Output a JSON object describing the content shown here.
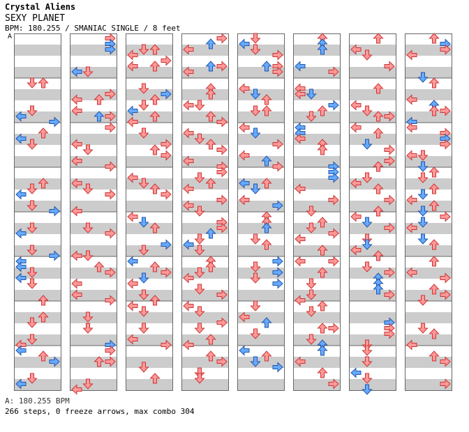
{
  "song": {
    "artist": "Crystal Aliens",
    "title": "SEXY PLANET",
    "info": "BPM: 180.255 / SMANIAC SINGLE / 8 feet"
  },
  "bpm_marker": "A",
  "footer": {
    "bpm": "A: 180.255 BPM",
    "stats": "266 steps, 0 freeze arrows, max combo 304"
  },
  "colors": {
    "quarter_note": "#ff9999",
    "eighth_note": "#66aaff",
    "stripe": "#cccccc",
    "border": "#666666"
  },
  "columns": [
    {
      "label": "col1"
    },
    {
      "label": "col2"
    },
    {
      "label": "col3"
    },
    {
      "label": "col4"
    },
    {
      "label": "col5"
    },
    {
      "label": "col6"
    },
    {
      "label": "col7"
    },
    {
      "label": "col8"
    }
  ],
  "notes": [
    [
      [
        8,
        1,
        "r"
      ],
      [
        8,
        2,
        "r"
      ],
      [
        14,
        0,
        "b"
      ],
      [
        13,
        1,
        "r"
      ],
      [
        15,
        3,
        "b"
      ],
      [
        18,
        0,
        "b"
      ],
      [
        19,
        1,
        "r"
      ],
      [
        17,
        2,
        "r"
      ],
      [
        27,
        1,
        "r"
      ],
      [
        26,
        2,
        "r"
      ],
      [
        28,
        0,
        "b"
      ],
      [
        31,
        3,
        "b"
      ],
      [
        30,
        1,
        "r"
      ],
      [
        34,
        1,
        "r"
      ],
      [
        35,
        0,
        "b"
      ],
      [
        38,
        1,
        "r"
      ],
      [
        39,
        3,
        "b"
      ],
      [
        40,
        0,
        "b"
      ],
      [
        41,
        0,
        "b"
      ],
      [
        42,
        1,
        "r"
      ],
      [
        43,
        0,
        "b"
      ],
      [
        44,
        1,
        "r"
      ],
      [
        47,
        2,
        "r"
      ],
      [
        51,
        1,
        "r"
      ],
      [
        50,
        2,
        "r"
      ],
      [
        54,
        1,
        "r"
      ],
      [
        55,
        0,
        "r"
      ],
      [
        56,
        0,
        "b"
      ],
      [
        57,
        2,
        "r"
      ],
      [
        58,
        3,
        "b"
      ],
      [
        61,
        1,
        "r"
      ],
      [
        62,
        0,
        "b"
      ]
    ],
    [
      [
        0,
        3,
        "r"
      ],
      [
        1,
        3,
        "r"
      ],
      [
        1,
        3,
        "b"
      ],
      [
        2,
        3,
        "b"
      ],
      [
        6,
        0,
        "b"
      ],
      [
        6,
        1,
        "r"
      ],
      [
        10,
        3,
        "r"
      ],
      [
        11,
        0,
        "r"
      ],
      [
        11,
        2,
        "r"
      ],
      [
        13,
        0,
        "r"
      ],
      [
        14,
        2,
        "b"
      ],
      [
        14,
        3,
        "r"
      ],
      [
        16,
        3,
        "r"
      ],
      [
        19,
        0,
        "r"
      ],
      [
        20,
        1,
        "r"
      ],
      [
        22,
        0,
        "r"
      ],
      [
        23,
        3,
        "r"
      ],
      [
        26,
        0,
        "r"
      ],
      [
        27,
        1,
        "r"
      ],
      [
        28,
        3,
        "r"
      ],
      [
        31,
        0,
        "r"
      ],
      [
        34,
        1,
        "r"
      ],
      [
        35,
        3,
        "r"
      ],
      [
        39,
        1,
        "r"
      ],
      [
        39,
        0,
        "r"
      ],
      [
        41,
        2,
        "r"
      ],
      [
        42,
        3,
        "r"
      ],
      [
        44,
        0,
        "r"
      ],
      [
        46,
        0,
        "r"
      ],
      [
        47,
        3,
        "r"
      ],
      [
        50,
        1,
        "r"
      ],
      [
        52,
        1,
        "r"
      ],
      [
        55,
        3,
        "b"
      ],
      [
        56,
        3,
        "r"
      ],
      [
        58,
        2,
        "r"
      ],
      [
        58,
        3,
        "r"
      ],
      [
        62,
        1,
        "r"
      ],
      [
        63,
        0,
        "r"
      ]
    ],
    [
      [
        2,
        1,
        "r"
      ],
      [
        2,
        2,
        "r"
      ],
      [
        3,
        0,
        "r"
      ],
      [
        4,
        3,
        "r"
      ],
      [
        5,
        0,
        "r"
      ],
      [
        5,
        2,
        "r"
      ],
      [
        9,
        1,
        "r"
      ],
      [
        10,
        3,
        "b"
      ],
      [
        11,
        2,
        "r"
      ],
      [
        12,
        1,
        "r"
      ],
      [
        13,
        0,
        "b"
      ],
      [
        14,
        2,
        "r"
      ],
      [
        15,
        0,
        "r"
      ],
      [
        17,
        1,
        "r"
      ],
      [
        19,
        3,
        "r"
      ],
      [
        20,
        2,
        "r"
      ],
      [
        21,
        3,
        "r"
      ],
      [
        25,
        0,
        "r"
      ],
      [
        26,
        1,
        "r"
      ],
      [
        27,
        2,
        "r"
      ],
      [
        28,
        3,
        "r"
      ],
      [
        32,
        0,
        "r"
      ],
      [
        33,
        1,
        "b"
      ],
      [
        34,
        2,
        "r"
      ],
      [
        37,
        3,
        "b"
      ],
      [
        38,
        1,
        "r"
      ],
      [
        40,
        0,
        "b"
      ],
      [
        41,
        2,
        "r"
      ],
      [
        42,
        3,
        "r"
      ],
      [
        43,
        1,
        "b"
      ],
      [
        44,
        0,
        "r"
      ],
      [
        46,
        1,
        "r"
      ],
      [
        47,
        2,
        "r"
      ],
      [
        48,
        0,
        "r"
      ],
      [
        49,
        1,
        "r"
      ],
      [
        52,
        1,
        "r"
      ],
      [
        54,
        0,
        "r"
      ],
      [
        55,
        3,
        "r"
      ],
      [
        59,
        1,
        "r"
      ],
      [
        61,
        2,
        "r"
      ]
    ],
    [
      [
        0,
        3,
        "r"
      ],
      [
        1,
        2,
        "b"
      ],
      [
        2,
        0,
        "r"
      ],
      [
        5,
        2,
        "b"
      ],
      [
        5,
        3,
        "r"
      ],
      [
        6,
        0,
        "r"
      ],
      [
        9,
        2,
        "r"
      ],
      [
        10,
        2,
        "r"
      ],
      [
        12,
        0,
        "r"
      ],
      [
        12,
        1,
        "r"
      ],
      [
        14,
        2,
        "r"
      ],
      [
        15,
        3,
        "r"
      ],
      [
        17,
        0,
        "r"
      ],
      [
        18,
        1,
        "r"
      ],
      [
        19,
        2,
        "r"
      ],
      [
        20,
        3,
        "r"
      ],
      [
        22,
        0,
        "r"
      ],
      [
        23,
        3,
        "r"
      ],
      [
        24,
        3,
        "r"
      ],
      [
        25,
        1,
        "r"
      ],
      [
        26,
        2,
        "r"
      ],
      [
        27,
        0,
        "r"
      ],
      [
        29,
        3,
        "r"
      ],
      [
        30,
        0,
        "r"
      ],
      [
        31,
        1,
        "r"
      ],
      [
        33,
        3,
        "r"
      ],
      [
        34,
        3,
        "r"
      ],
      [
        35,
        2,
        "b"
      ],
      [
        36,
        1,
        "r"
      ],
      [
        37,
        0,
        "b"
      ],
      [
        38,
        1,
        "r"
      ],
      [
        40,
        2,
        "r"
      ],
      [
        41,
        2,
        "r"
      ],
      [
        42,
        1,
        "r"
      ],
      [
        43,
        0,
        "r"
      ],
      [
        45,
        1,
        "r"
      ],
      [
        46,
        3,
        "r"
      ],
      [
        48,
        0,
        "r"
      ],
      [
        49,
        1,
        "r"
      ],
      [
        51,
        3,
        "r"
      ],
      [
        52,
        1,
        "r"
      ],
      [
        54,
        2,
        "r"
      ],
      [
        55,
        0,
        "r"
      ],
      [
        57,
        2,
        "r"
      ],
      [
        58,
        3,
        "r"
      ],
      [
        60,
        1,
        "r"
      ],
      [
        61,
        1,
        "r"
      ]
    ],
    [
      [
        0,
        1,
        "r"
      ],
      [
        1,
        0,
        "b"
      ],
      [
        2,
        1,
        "r"
      ],
      [
        3,
        3,
        "r"
      ],
      [
        5,
        2,
        "b"
      ],
      [
        5,
        3,
        "r"
      ],
      [
        6,
        3,
        "r"
      ],
      [
        9,
        0,
        "r"
      ],
      [
        10,
        1,
        "b"
      ],
      [
        11,
        2,
        "r"
      ],
      [
        13,
        1,
        "r"
      ],
      [
        13,
        2,
        "r"
      ],
      [
        16,
        0,
        "r"
      ],
      [
        17,
        1,
        "b"
      ],
      [
        19,
        3,
        "r"
      ],
      [
        21,
        0,
        "r"
      ],
      [
        22,
        2,
        "b"
      ],
      [
        23,
        3,
        "r"
      ],
      [
        26,
        0,
        "b"
      ],
      [
        27,
        1,
        "b"
      ],
      [
        26,
        2,
        "r"
      ],
      [
        29,
        0,
        "r"
      ],
      [
        30,
        3,
        "b"
      ],
      [
        32,
        2,
        "r"
      ],
      [
        33,
        2,
        "r"
      ],
      [
        34,
        2,
        "b"
      ],
      [
        36,
        1,
        "r"
      ],
      [
        37,
        2,
        "r"
      ],
      [
        40,
        3,
        "b"
      ],
      [
        41,
        1,
        "r"
      ],
      [
        42,
        3,
        "b"
      ],
      [
        43,
        1,
        "r"
      ],
      [
        44,
        3,
        "b"
      ],
      [
        48,
        1,
        "r"
      ],
      [
        50,
        0,
        "r"
      ],
      [
        51,
        2,
        "b"
      ],
      [
        53,
        1,
        "r"
      ],
      [
        56,
        0,
        "b"
      ],
      [
        57,
        2,
        "r"
      ],
      [
        58,
        1,
        "b"
      ],
      [
        59,
        3,
        "b"
      ]
    ],
    [
      [
        0,
        2,
        "r"
      ],
      [
        1,
        2,
        "b"
      ],
      [
        2,
        2,
        "b"
      ],
      [
        5,
        0,
        "b"
      ],
      [
        6,
        3,
        "r"
      ],
      [
        9,
        0,
        "r"
      ],
      [
        10,
        0,
        "r"
      ],
      [
        10,
        1,
        "b"
      ],
      [
        12,
        3,
        "b"
      ],
      [
        13,
        2,
        "r"
      ],
      [
        14,
        1,
        "r"
      ],
      [
        16,
        0,
        "b"
      ],
      [
        17,
        0,
        "b"
      ],
      [
        18,
        0,
        "r"
      ],
      [
        19,
        2,
        "r"
      ],
      [
        20,
        2,
        "r"
      ],
      [
        23,
        3,
        "b"
      ],
      [
        24,
        3,
        "b"
      ],
      [
        25,
        3,
        "b"
      ],
      [
        27,
        0,
        "r"
      ],
      [
        29,
        3,
        "r"
      ],
      [
        31,
        1,
        "r"
      ],
      [
        33,
        2,
        "r"
      ],
      [
        34,
        1,
        "r"
      ],
      [
        35,
        3,
        "r"
      ],
      [
        36,
        0,
        "r"
      ],
      [
        38,
        2,
        "r"
      ],
      [
        40,
        0,
        "r"
      ],
      [
        40,
        3,
        "r"
      ],
      [
        42,
        2,
        "r"
      ],
      [
        44,
        1,
        "r"
      ],
      [
        46,
        1,
        "r"
      ],
      [
        47,
        0,
        "r"
      ],
      [
        48,
        2,
        "r"
      ],
      [
        49,
        1,
        "r"
      ],
      [
        52,
        2,
        "r"
      ],
      [
        52,
        3,
        "r"
      ],
      [
        54,
        1,
        "r"
      ],
      [
        55,
        2,
        "b"
      ],
      [
        56,
        2,
        "b"
      ],
      [
        58,
        0,
        "r"
      ],
      [
        60,
        2,
        "r"
      ],
      [
        62,
        3,
        "r"
      ]
    ],
    [
      [
        0,
        2,
        "r"
      ],
      [
        2,
        0,
        "r"
      ],
      [
        3,
        1,
        "r"
      ],
      [
        5,
        3,
        "r"
      ],
      [
        9,
        2,
        "r"
      ],
      [
        12,
        0,
        "r"
      ],
      [
        13,
        1,
        "r"
      ],
      [
        14,
        2,
        "r"
      ],
      [
        14,
        3,
        "r"
      ],
      [
        16,
        0,
        "r"
      ],
      [
        17,
        2,
        "r"
      ],
      [
        19,
        1,
        "b"
      ],
      [
        20,
        3,
        "r"
      ],
      [
        22,
        3,
        "r"
      ],
      [
        23,
        2,
        "r"
      ],
      [
        25,
        1,
        "r"
      ],
      [
        26,
        0,
        "r"
      ],
      [
        27,
        2,
        "r"
      ],
      [
        29,
        3,
        "r"
      ],
      [
        31,
        2,
        "r"
      ],
      [
        32,
        0,
        "r"
      ],
      [
        33,
        1,
        "b"
      ],
      [
        34,
        3,
        "r"
      ],
      [
        36,
        1,
        "r"
      ],
      [
        37,
        1,
        "b"
      ],
      [
        38,
        0,
        "r"
      ],
      [
        39,
        2,
        "r"
      ],
      [
        41,
        1,
        "r"
      ],
      [
        42,
        3,
        "r"
      ],
      [
        43,
        2,
        "b"
      ],
      [
        44,
        2,
        "b"
      ],
      [
        45,
        2,
        "b"
      ],
      [
        46,
        3,
        "r"
      ],
      [
        51,
        3,
        "b"
      ],
      [
        52,
        3,
        "r"
      ],
      [
        53,
        3,
        "r"
      ],
      [
        55,
        1,
        "r"
      ],
      [
        56,
        1,
        "r"
      ],
      [
        58,
        1,
        "r"
      ],
      [
        60,
        0,
        "b"
      ],
      [
        61,
        1,
        "r"
      ],
      [
        63,
        1,
        "b"
      ]
    ],
    [
      [
        0,
        2,
        "r"
      ],
      [
        1,
        3,
        "b"
      ],
      [
        2,
        3,
        "r"
      ],
      [
        3,
        0,
        "r"
      ],
      [
        7,
        1,
        "b"
      ],
      [
        8,
        2,
        "r"
      ],
      [
        11,
        0,
        "r"
      ],
      [
        12,
        2,
        "b"
      ],
      [
        13,
        2,
        "r"
      ],
      [
        13,
        3,
        "r"
      ],
      [
        15,
        0,
        "b"
      ],
      [
        16,
        0,
        "r"
      ],
      [
        17,
        3,
        "r"
      ],
      [
        18,
        3,
        "b"
      ],
      [
        19,
        3,
        "r"
      ],
      [
        21,
        0,
        "r"
      ],
      [
        21,
        1,
        "r"
      ],
      [
        23,
        1,
        "b"
      ],
      [
        24,
        2,
        "r"
      ],
      [
        25,
        1,
        "r"
      ],
      [
        27,
        2,
        "r"
      ],
      [
        28,
        1,
        "b"
      ],
      [
        29,
        0,
        "r"
      ],
      [
        30,
        2,
        "r"
      ],
      [
        31,
        1,
        "b"
      ],
      [
        32,
        3,
        "r"
      ],
      [
        33,
        1,
        "b"
      ],
      [
        34,
        0,
        "r"
      ],
      [
        36,
        1,
        "b"
      ],
      [
        37,
        2,
        "r"
      ],
      [
        40,
        2,
        "r"
      ],
      [
        42,
        0,
        "r"
      ],
      [
        43,
        3,
        "r"
      ],
      [
        45,
        2,
        "r"
      ],
      [
        46,
        3,
        "r"
      ],
      [
        47,
        1,
        "r"
      ],
      [
        52,
        1,
        "r"
      ],
      [
        53,
        2,
        "r"
      ],
      [
        55,
        0,
        "r"
      ],
      [
        57,
        2,
        "r"
      ],
      [
        58,
        3,
        "r"
      ],
      [
        62,
        3,
        "r"
      ]
    ]
  ]
}
